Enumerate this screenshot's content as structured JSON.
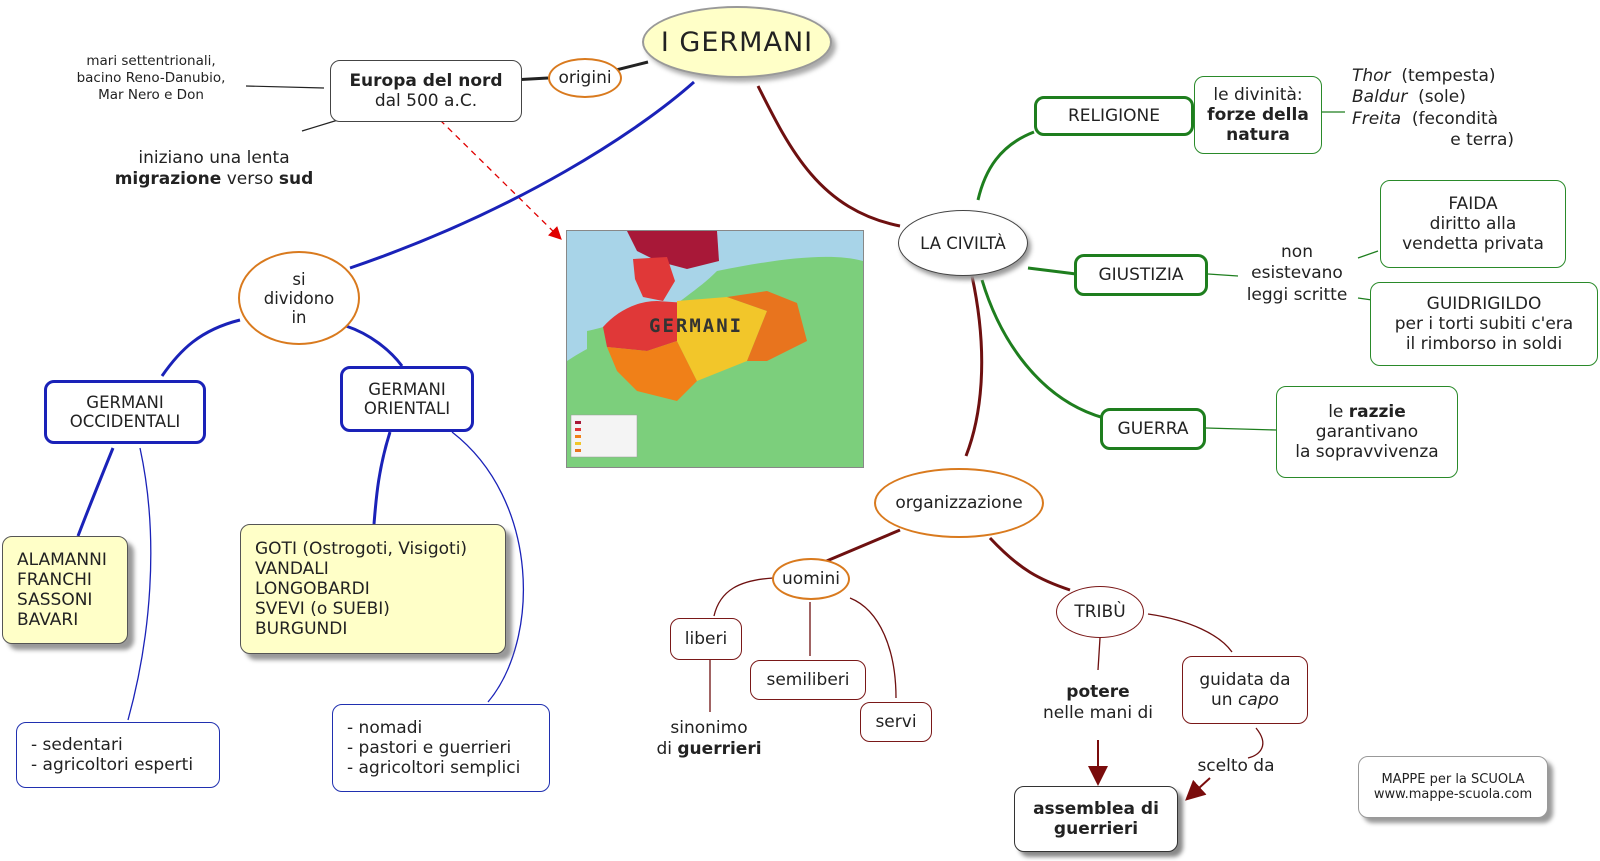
{
  "title": "I GERMANI",
  "origins": {
    "label": "origini",
    "europe_line1": "Europa del nord",
    "europe_line2": "dal 500 a.C.",
    "seas_line1": "mari settentrionali,",
    "seas_line2": "bacino Reno-Danubio,",
    "seas_line3": "Mar Nero e Don",
    "migration_line1": "iniziano una lenta",
    "migration_bold1": "migrazione",
    "migration_mid": " verso ",
    "migration_bold2": "sud"
  },
  "divide": {
    "label_line1": "si",
    "label_line2": "dividono",
    "label_line3": "in",
    "west_line1": "GERMANI",
    "west_line2": "OCCIDENTALI",
    "east_line1": "GERMANI",
    "east_line2": "ORIENTALI",
    "west_tribes": [
      "ALAMANNI",
      "FRANCHI",
      "SASSONI",
      "BAVARI"
    ],
    "east_tribes": [
      "GOTI (Ostrogoti, Visigoti)",
      "VANDALI",
      "LONGOBARDI",
      "SVEVI (o SUEBI)",
      "BURGUNDI"
    ],
    "west_traits": [
      "- sedentari",
      "- agricoltori esperti"
    ],
    "east_traits": [
      "- nomadi",
      "- pastori e guerrieri",
      "- agricoltori semplici"
    ]
  },
  "map": {
    "label": "GERMANI"
  },
  "civilta": {
    "label": "LA CIVILTÀ",
    "religione": "RELIGIONE",
    "religione_desc_line1": "le divinità:",
    "religione_desc_line2": "forze della",
    "religione_desc_line3": "natura",
    "gods": [
      {
        "name": "Thor",
        "desc": "  (tempesta)"
      },
      {
        "name": "Baldur",
        "desc": "  (sole)"
      },
      {
        "name": "Freita",
        "desc": "  (fecondità"
      }
    ],
    "gods_tail": "e terra)",
    "giustizia": "GIUSTIZIA",
    "giustizia_desc_line1": "non",
    "giustizia_desc_line2": "esistevano",
    "giustizia_desc_line3": "leggi scritte",
    "faida_line1": "FAIDA",
    "faida_line2": "diritto alla",
    "faida_line3": "vendetta privata",
    "guidrigildo_line1": "GUIDRIGILDO",
    "guidrigildo_line2": "per i torti subiti c'era",
    "guidrigildo_line3": "il rimborso in soldi",
    "guerra": "GUERRA",
    "guerra_desc_pre": "le ",
    "guerra_desc_bold": "razzie",
    "guerra_desc_line2": "garantivano",
    "guerra_desc_line3": "la sopravvivenza"
  },
  "organizzazione": {
    "label": "organizzazione",
    "uomini": "uomini",
    "liberi": "liberi",
    "semiliberi": "semiliberi",
    "servi": "servi",
    "sinonimo_line1": "sinonimo",
    "sinonimo_pre": "di ",
    "sinonimo_bold": "guerrieri",
    "tribu": "TRIBÙ",
    "potere_bold": "potere",
    "potere_line2": "nelle mani di",
    "guidata_line1": "guidata da",
    "guidata_pre": "un ",
    "guidata_italic": "capo",
    "scelto": "scelto da",
    "assemblea_line1": "assemblea di",
    "assemblea_line2": "guerrieri"
  },
  "footer": {
    "line1": "MAPPE per la SCUOLA",
    "line2": "www.mappe-scuola.com"
  },
  "colors": {
    "blue": "#1a22b8",
    "green": "#1e7e1e",
    "maroon": "#6e1010",
    "orange": "#d97a1e",
    "title_fill": "#ffffc8"
  }
}
